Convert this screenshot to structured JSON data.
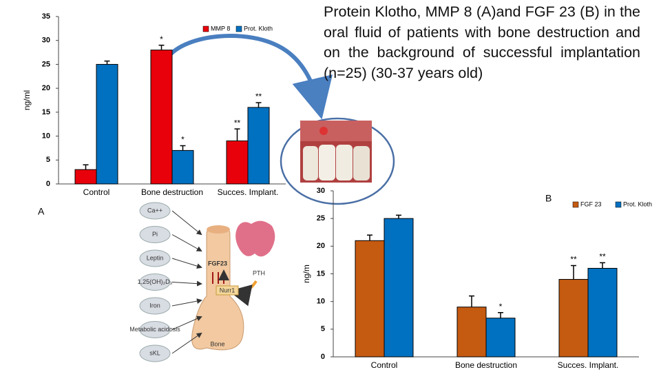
{
  "title": "Protein Klotho, MMP 8 (A)and FGF 23 (B)  in the oral fluid of patients with bone destruction and on the background of successful implantation (n=25) (30-37 years old)",
  "chart_data": [
    {
      "type": "bar",
      "panel": "A",
      "ylabel": "ng/ml",
      "categories": [
        "Control",
        "Bone destruction",
        "Succes. Implant."
      ],
      "series": [
        {
          "name": "MMP 8",
          "color": "#e8000b",
          "values": [
            3,
            28,
            9
          ],
          "errors": [
            1,
            1,
            2.5
          ],
          "annotations": [
            null,
            "*",
            "**"
          ]
        },
        {
          "name": "Prot. Kloth",
          "color": "#0070c0",
          "values": [
            25,
            7,
            16
          ],
          "errors": [
            0.7,
            1,
            1
          ],
          "annotations": [
            null,
            "*",
            "**"
          ]
        }
      ],
      "ylim": [
        0,
        35
      ],
      "yticks": [
        0,
        5,
        10,
        15,
        20,
        25,
        30,
        35
      ]
    },
    {
      "type": "bar",
      "panel": "B",
      "ylabel": "ng/m",
      "categories": [
        "Control",
        "Bone destruction",
        "Succes. Implant."
      ],
      "series": [
        {
          "name": "FGF 23",
          "color": "#c55a11",
          "values": [
            21,
            9,
            14
          ],
          "errors": [
            1,
            2,
            2.5
          ],
          "annotations": [
            null,
            null,
            "**"
          ]
        },
        {
          "name": "Prot. Kloth",
          "color": "#0070c0",
          "values": [
            25,
            7,
            16
          ],
          "errors": [
            0.6,
            1,
            1
          ],
          "annotations": [
            null,
            "*",
            "**"
          ]
        }
      ],
      "ylim": [
        0,
        30
      ],
      "yticks": [
        0,
        5,
        10,
        15,
        20,
        25,
        30
      ]
    }
  ],
  "diagram": {
    "inputs": [
      "Ca++",
      "Pi",
      "Leptin",
      "1,25(OH)₂D₃",
      "Iron",
      "Metabolic acidosis",
      "sKL"
    ],
    "fgf": "FGF23",
    "nurr": "Nurr1",
    "pth": "PTH",
    "bone": "Bone"
  }
}
